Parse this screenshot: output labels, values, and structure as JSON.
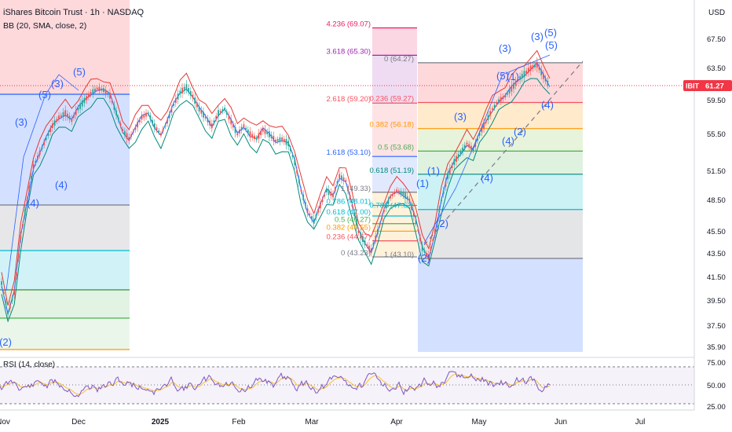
{
  "header": {
    "title": "iShares Bitcoin Trust · 1h · NASDAQ",
    "indicator": "BB (20, SMA, close, 2)",
    "currency": "USD"
  },
  "price_label": {
    "ticker": "IBIT",
    "value": "61.27"
  },
  "colors": {
    "candle_up": "#26a69a",
    "candle_down": "#ef5350",
    "bb_upper": "#e53935",
    "bb_basis": "#2962ff",
    "bb_lower": "#00897b",
    "wave_label": "#2962ff",
    "rsi_line": "#7e57c2",
    "rsi_ma": "#fbc02d",
    "ticker_badge": "#f23645"
  },
  "chart_data": {
    "type": "line",
    "y_axis_ticks": [
      "67.50",
      "63.50",
      "59.50",
      "55.50",
      "51.50",
      "48.50",
      "45.50",
      "43.50",
      "41.50",
      "39.50",
      "37.50",
      "35.90"
    ],
    "x_axis_ticks": [
      "Nov",
      "Dec",
      "2025",
      "Feb",
      "Mar",
      "Apr",
      "May",
      "Jun",
      "Jul"
    ],
    "series": [
      {
        "values": [
          41.0,
          38.5,
          40.2,
          45.0,
          48.5,
          52.0,
          53.5,
          55.0,
          56.5,
          57.5,
          58.0,
          57.2,
          58.5,
          59.5,
          60.4,
          61.0,
          60.8,
          60.1,
          58.0,
          56.0,
          55.0,
          56.2,
          57.5,
          58.0,
          56.5,
          55.5,
          57.0,
          59.0,
          60.5,
          61.2,
          60.0,
          58.5,
          57.5,
          56.5,
          58.0,
          58.5,
          57.0,
          55.5,
          56.5,
          55.5,
          55.0,
          56.0,
          55.5,
          54.8,
          55.0,
          54.5,
          52.5,
          49.5,
          47.5,
          46.5,
          48.0,
          49.5,
          49.0,
          51.0,
          50.5,
          48.0,
          45.5,
          44.5,
          43.8,
          45.5,
          47.5,
          48.8,
          49.5,
          49.2,
          48.5,
          46.5,
          44.0,
          43.2,
          45.5,
          48.5,
          51.0,
          52.5,
          53.5,
          54.5,
          53.8,
          55.5,
          57.0,
          58.5,
          59.5,
          60.0,
          61.0,
          62.0,
          62.8,
          63.5,
          64.0,
          62.5,
          61.27
        ]
      }
    ],
    "fib_left": [
      {
        "label": "4.236 (69.07)",
        "value": 69.07
      },
      {
        "label": "3.618 (65.30)",
        "value": 65.3
      },
      {
        "label": "2.618 (59.20)",
        "value": 59.2
      },
      {
        "label": "1.618 (53.10)",
        "value": 53.1
      },
      {
        "label": "1 (49.33)",
        "value": 49.33
      },
      {
        "label": "0.786 (48.01)",
        "value": 48.01
      },
      {
        "label": "0.618 (47.00)",
        "value": 47.0
      },
      {
        "label": "0.5 (46.27)",
        "value": 46.27
      },
      {
        "label": "0.382 (45.55)",
        "value": 45.55
      },
      {
        "label": "0.236 (44.67)",
        "value": 44.67
      },
      {
        "label": "0 (43.23)",
        "value": 43.23
      }
    ],
    "fib_right": [
      {
        "label": "0 (64.27)",
        "value": 64.27
      },
      {
        "label": "0.236 (59.27)",
        "value": 59.27
      },
      {
        "label": "0.382 (56.18)",
        "value": 56.18
      },
      {
        "label": "0.5 (53.68)",
        "value": 53.68
      },
      {
        "label": "0.618 (51.19)",
        "value": 51.19
      },
      {
        "label": "0.786 (47.62)",
        "value": 47.62
      },
      {
        "label": "1 (43.10)",
        "value": 43.1
      }
    ],
    "waves": [
      {
        "label": "(2)",
        "value": 36.6
      },
      {
        "label": "(4)",
        "value": 48.2
      },
      {
        "label": "(3)",
        "value": 56.6
      },
      {
        "label": "(4)",
        "value": 50.4
      },
      {
        "label": "(5)",
        "value": 59.8
      },
      {
        "label": "(3)",
        "value": 61.8
      },
      {
        "label": "(5)",
        "value": 63.0
      },
      {
        "label": "(1)",
        "value": 50.0
      },
      {
        "label": "(2)",
        "value": 42.6
      },
      {
        "label": "(1)",
        "value": 51.2
      },
      {
        "label": "(2)",
        "value": 45.8
      },
      {
        "label": "(3)",
        "value": 57.0
      },
      {
        "label": "(4)",
        "value": 50.6
      },
      {
        "label": "(4)",
        "value": 54.8
      },
      {
        "label": "(2)",
        "value": 55.5
      },
      {
        "label": "(3)",
        "value": 65.5
      },
      {
        "label": "(5)",
        "value": 61.5
      },
      {
        "label": "(1)",
        "value": 61.5
      },
      {
        "label": "(4)",
        "value": 58.1
      },
      {
        "label": "(3)",
        "value": 67.4
      },
      {
        "label": "(5)",
        "value": 67.8
      },
      {
        "label": "(5)",
        "value": 65.8
      }
    ],
    "rsi": {
      "title": "RSI (14, close)",
      "ticks": [
        "75.00",
        "50.00",
        "25.00"
      ]
    }
  }
}
